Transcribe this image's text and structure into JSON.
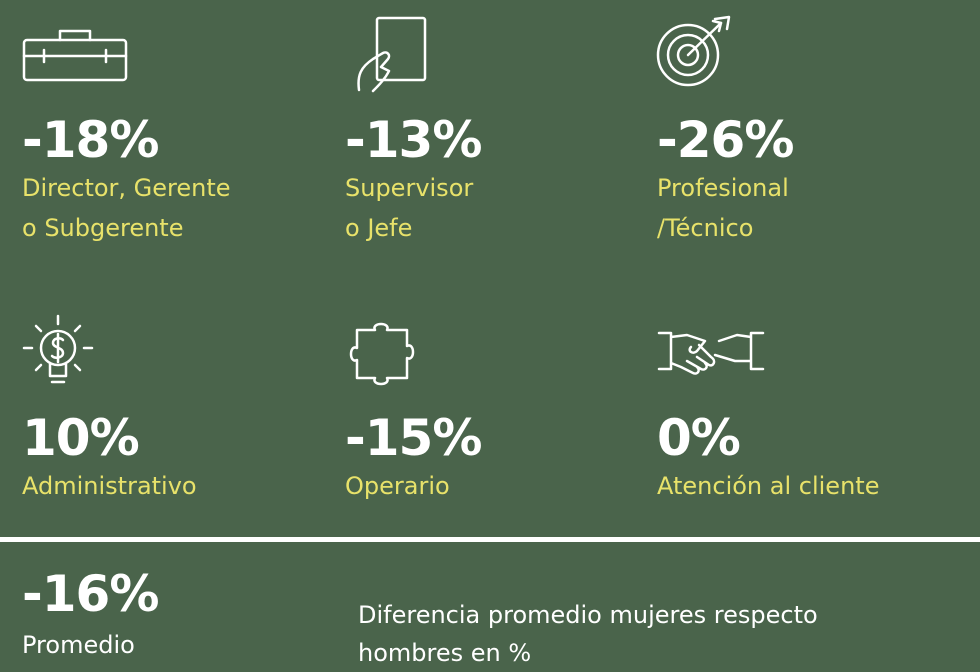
{
  "items": [
    {
      "value": "-18%",
      "label_lines": [
        "Director, Gerente",
        "o Subgerente"
      ]
    },
    {
      "value": "-13%",
      "label_lines": [
        "Supervisor",
        "o Jefe"
      ]
    },
    {
      "value": "-26%",
      "label_lines": [
        "Profesional",
        "/Técnico"
      ]
    },
    {
      "value": "10%",
      "label_lines": [
        "Administrativo"
      ]
    },
    {
      "value": "-15%",
      "label_lines": [
        "Operario"
      ]
    },
    {
      "value": "0%",
      "label_lines": [
        "Atención al cliente"
      ]
    }
  ],
  "summary": {
    "value": "-16%",
    "label": "Promedio"
  },
  "note_lines": [
    "Diferencia promedio mujeres respecto",
    "hombres en %"
  ]
}
